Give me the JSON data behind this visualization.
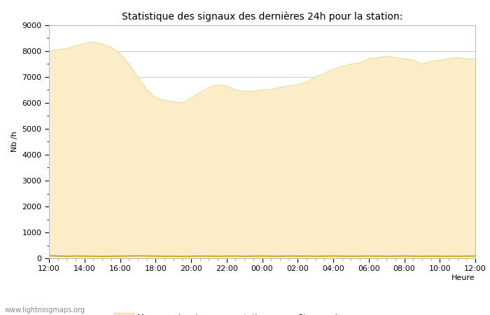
{
  "title": "Statistique des signaux des dernières 24h pour la station:",
  "xlabel": "Heure",
  "ylabel": "Nb /h",
  "ylim": [
    0,
    9000
  ],
  "yticks": [
    0,
    1000,
    2000,
    3000,
    4000,
    5000,
    6000,
    7000,
    8000,
    9000
  ],
  "xtick_labels": [
    "12:00",
    "14:00",
    "16:00",
    "18:00",
    "20:00",
    "22:00",
    "00:00",
    "02:00",
    "04:00",
    "06:00",
    "08:00",
    "10:00",
    "12:00"
  ],
  "fill_color": "#FAEDC8",
  "fill_edge_color": "#EDD99A",
  "line_color": "#C8A000",
  "bg_color": "#FFFFFF",
  "plot_bg_color": "#FFFFFF",
  "grid_color": "#CCCCCC",
  "watermark": "www.lightningmaps.org",
  "legend_fill_label": "Moyenne des signaux par station",
  "legend_line_label": "Signaux de",
  "x": [
    0,
    1,
    2,
    3,
    4,
    5,
    6,
    7,
    8,
    9,
    10,
    11,
    12,
    13,
    14,
    15,
    16,
    17,
    18,
    19,
    20,
    21,
    22,
    23,
    24,
    25,
    26,
    27,
    28,
    29,
    30,
    31,
    32,
    33,
    34,
    35,
    36,
    37,
    38,
    39,
    40,
    41,
    42,
    43,
    44,
    45,
    46,
    47,
    48
  ],
  "y_fill": [
    8000,
    8050,
    8100,
    8200,
    8300,
    8350,
    8280,
    8150,
    7900,
    7500,
    7000,
    6500,
    6200,
    6100,
    6050,
    6000,
    6200,
    6400,
    6600,
    6700,
    6650,
    6500,
    6450,
    6450,
    6500,
    6520,
    6600,
    6650,
    6700,
    6800,
    7000,
    7150,
    7300,
    7400,
    7500,
    7550,
    7700,
    7750,
    7800,
    7750,
    7700,
    7650,
    7500,
    7600,
    7650,
    7700,
    7750,
    7700,
    7700
  ],
  "y_line": [
    100,
    90,
    80,
    90,
    85,
    80,
    75,
    80,
    85,
    90,
    95,
    90,
    85,
    80,
    80,
    75,
    80,
    90,
    85,
    80,
    85,
    90,
    80,
    85,
    90,
    85,
    80,
    90,
    85,
    90,
    80,
    85,
    90,
    85,
    80,
    85,
    90,
    85,
    80,
    85,
    90,
    85,
    80,
    85,
    80,
    85,
    80,
    85,
    90
  ]
}
